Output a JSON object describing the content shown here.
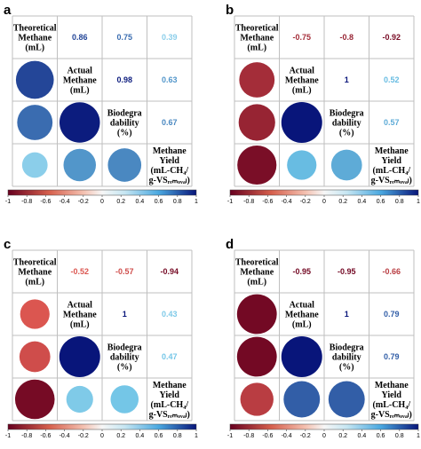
{
  "chart_data": [
    {
      "type": "heatmap",
      "panel": "a",
      "variables": [
        "Theoretical Methane (mL)",
        "Actual Methane (mL)",
        "Biodegradability (%)",
        "Methane Yield (mL-CH4/g-VSremoval)"
      ],
      "correlations": [
        [
          "Theoretical Methane (mL)",
          "Actual Methane (mL)",
          0.86
        ],
        [
          "Theoretical Methane (mL)",
          "Biodegradability (%)",
          0.75
        ],
        [
          "Theoretical Methane (mL)",
          "Methane Yield (mL-CH4/g-VSremoval)",
          0.39
        ],
        [
          "Actual Methane (mL)",
          "Biodegradability (%)",
          0.98
        ],
        [
          "Actual Methane (mL)",
          "Methane Yield (mL-CH4/g-VSremoval)",
          0.63
        ],
        [
          "Biodegradability (%)",
          "Methane Yield (mL-CH4/g-VSremoval)",
          0.67
        ]
      ],
      "colorbar": {
        "range": [
          -1,
          1
        ],
        "ticks": [
          -1,
          -0.8,
          -0.6,
          -0.4,
          -0.2,
          0,
          0.2,
          0.4,
          0.6,
          0.8,
          1
        ]
      }
    },
    {
      "type": "heatmap",
      "panel": "b",
      "variables": [
        "Theoretical Methane (mL)",
        "Actual Methane (mL)",
        "Biodegradability (%)",
        "Methane Yield (mL-CH4/g-VSremoval)"
      ],
      "correlations": [
        [
          "Theoretical Methane (mL)",
          "Actual Methane (mL)",
          -0.75
        ],
        [
          "Theoretical Methane (mL)",
          "Biodegradability (%)",
          -0.8
        ],
        [
          "Theoretical Methane (mL)",
          "Methane Yield (mL-CH4/g-VSremoval)",
          -0.92
        ],
        [
          "Actual Methane (mL)",
          "Biodegradability (%)",
          1
        ],
        [
          "Actual Methane (mL)",
          "Methane Yield (mL-CH4/g-VSremoval)",
          0.52
        ],
        [
          "Biodegradability (%)",
          "Methane Yield (mL-CH4/g-VSremoval)",
          0.57
        ]
      ],
      "colorbar": {
        "range": [
          -1,
          1
        ],
        "ticks": [
          -1,
          -0.8,
          -0.6,
          -0.4,
          -0.2,
          0,
          0.2,
          0.4,
          0.6,
          0.8,
          1
        ]
      }
    },
    {
      "type": "heatmap",
      "panel": "c",
      "variables": [
        "Theoretical Methane (mL)",
        "Actual Methane (mL)",
        "Biodegradability (%)",
        "Methane Yield (mL-CH4/g-VSremoval)"
      ],
      "correlations": [
        [
          "Theoretical Methane (mL)",
          "Actual Methane (mL)",
          -0.52
        ],
        [
          "Theoretical Methane (mL)",
          "Biodegradability (%)",
          -0.57
        ],
        [
          "Theoretical Methane (mL)",
          "Methane Yield (mL-CH4/g-VSremoval)",
          -0.94
        ],
        [
          "Actual Methane (mL)",
          "Biodegradability (%)",
          1
        ],
        [
          "Actual Methane (mL)",
          "Methane Yield (mL-CH4/g-VSremoval)",
          0.43
        ],
        [
          "Biodegradability (%)",
          "Methane Yield (mL-CH4/g-VSremoval)",
          0.47
        ]
      ],
      "colorbar": {
        "range": [
          -1,
          1
        ],
        "ticks": [
          -1,
          -0.8,
          -0.6,
          -0.4,
          -0.2,
          0,
          0.2,
          0.4,
          0.6,
          0.8,
          1
        ]
      }
    },
    {
      "type": "heatmap",
      "panel": "d",
      "variables": [
        "Theoretical Methane (mL)",
        "Actual Methane (mL)",
        "Biodegradability (%)",
        "Methane Yield (mL-CH4/g-VSremoval)"
      ],
      "correlations": [
        [
          "Theoretical Methane (mL)",
          "Actual Methane (mL)",
          -0.95
        ],
        [
          "Theoretical Methane (mL)",
          "Biodegradability (%)",
          -0.95
        ],
        [
          "Theoretical Methane (mL)",
          "Methane Yield (mL-CH4/g-VSremoval)",
          -0.66
        ],
        [
          "Actual Methane (mL)",
          "Biodegradability (%)",
          1
        ],
        [
          "Actual Methane (mL)",
          "Methane Yield (mL-CH4/g-VSremoval)",
          0.79
        ],
        [
          "Biodegradability (%)",
          "Methane Yield (mL-CH4/g-VSremoval)",
          0.79
        ]
      ],
      "colorbar": {
        "range": [
          -1,
          1
        ],
        "ticks": [
          -1,
          -0.8,
          -0.6,
          -0.4,
          -0.2,
          0,
          0.2,
          0.4,
          0.6,
          0.8,
          1
        ]
      }
    }
  ],
  "panels": [
    {
      "letter": "a",
      "labels": [
        [
          "Theoretical",
          "Methane",
          "(mL)"
        ],
        [
          "Actual",
          "Methane",
          "(mL)"
        ],
        [
          "Biodegra",
          "dability",
          "(%)"
        ],
        [
          "Methane",
          "Yield",
          "(mL-CH₄/",
          "g-VSᵣₑₘₒᵥₐₗ)"
        ]
      ],
      "upper": [
        [
          "0.86",
          "0.75",
          "0.39"
        ],
        [
          "0.98",
          "0.63"
        ],
        [
          "0.67"
        ]
      ],
      "colorbar_ticks": [
        "-1",
        "-0.8",
        "-0.6",
        "-0.4",
        "-0.2",
        "0",
        "0.2",
        "0.4",
        "0.6",
        "0.8",
        "1"
      ]
    },
    {
      "letter": "b",
      "labels": [
        [
          "Theoretical",
          "Methane",
          "(mL)"
        ],
        [
          "Actual",
          "Methane",
          "(mL)"
        ],
        [
          "Biodegra",
          "dability",
          "(%)"
        ],
        [
          "Methane",
          "Yield",
          "(mL-CH₄/",
          "g-VSᵣₑₘₒᵥₐₗ)"
        ]
      ],
      "upper": [
        [
          "-0.75",
          "-0.8",
          "-0.92"
        ],
        [
          "1",
          "0.52"
        ],
        [
          "0.57"
        ]
      ],
      "colorbar_ticks": [
        "-1",
        "-0.8",
        "-0.6",
        "-0.4",
        "-0.2",
        "0",
        "0.2",
        "0.4",
        "0.6",
        "0.8",
        "1"
      ]
    },
    {
      "letter": "c",
      "labels": [
        [
          "Theoretical",
          "Methane",
          "(mL)"
        ],
        [
          "Actual",
          "Methane",
          "(mL)"
        ],
        [
          "Biodegra",
          "dability",
          "(%)"
        ],
        [
          "Methane",
          "Yield",
          "(mL-CH₄/",
          "g-VSᵣₑₘₒᵥₐₗ)"
        ]
      ],
      "upper": [
        [
          "-0.52",
          "-0.57",
          "-0.94"
        ],
        [
          "1",
          "0.43"
        ],
        [
          "0.47"
        ]
      ],
      "colorbar_ticks": [
        "-1",
        "-0.8",
        "-0.6",
        "-0.4",
        "-0.2",
        "0",
        "0.2",
        "0.4",
        "0.6",
        "0.8",
        "1"
      ]
    },
    {
      "letter": "d",
      "labels": [
        [
          "Theoretical",
          "Methane",
          "(mL)"
        ],
        [
          "Actual",
          "Methane",
          "(mL)"
        ],
        [
          "Biodegra",
          "dability",
          "(%)"
        ],
        [
          "Methane",
          "Yield",
          "(mL-CH₄/",
          "g-VSᵣₑₘₒᵥₐₗ)"
        ]
      ],
      "upper": [
        [
          "-0.95",
          "-0.95",
          "-0.66"
        ],
        [
          "1",
          "0.79"
        ],
        [
          "0.79"
        ]
      ],
      "colorbar_ticks": [
        "-1",
        "-0.8",
        "-0.6",
        "-0.4",
        "-0.2",
        "0",
        "0.2",
        "0.4",
        "0.6",
        "0.8",
        "1"
      ]
    }
  ],
  "colors": {
    "negative_strong": "#67001f",
    "negative_mid": "#e05a52",
    "neutral": "#f7f7f7",
    "positive_mid": "#6cc3e6",
    "positive_strong": "#08157a",
    "grid": "#bfbfbf"
  }
}
